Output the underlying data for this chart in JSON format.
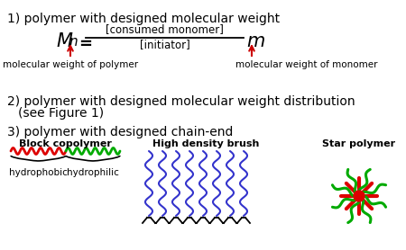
{
  "bg_color": "#ffffff",
  "fig_width": 4.5,
  "fig_height": 2.78,
  "dpi": 100,
  "title1": "1) polymer with designed molecular weight",
  "title2_line1": "2) polymer with designed molecular weight distribution",
  "title2_line2": "    (see Figure 1)",
  "title3": "3) polymer with designed chain-end",
  "label_polymer": "molecular weight of polymer",
  "label_monomer": "molecular weight of monomer",
  "label_block": "Block copolymer",
  "label_hydrophobic": "hydrophobic",
  "label_hydrophilic": "hydrophilic",
  "label_brush": "High density brush",
  "label_star": "Star polymer",
  "arrow_color": "#cc0000",
  "red_color": "#dd0000",
  "green_color": "#00aa00",
  "blue_color": "#3333cc",
  "black_color": "#000000",
  "text_color": "#000000"
}
